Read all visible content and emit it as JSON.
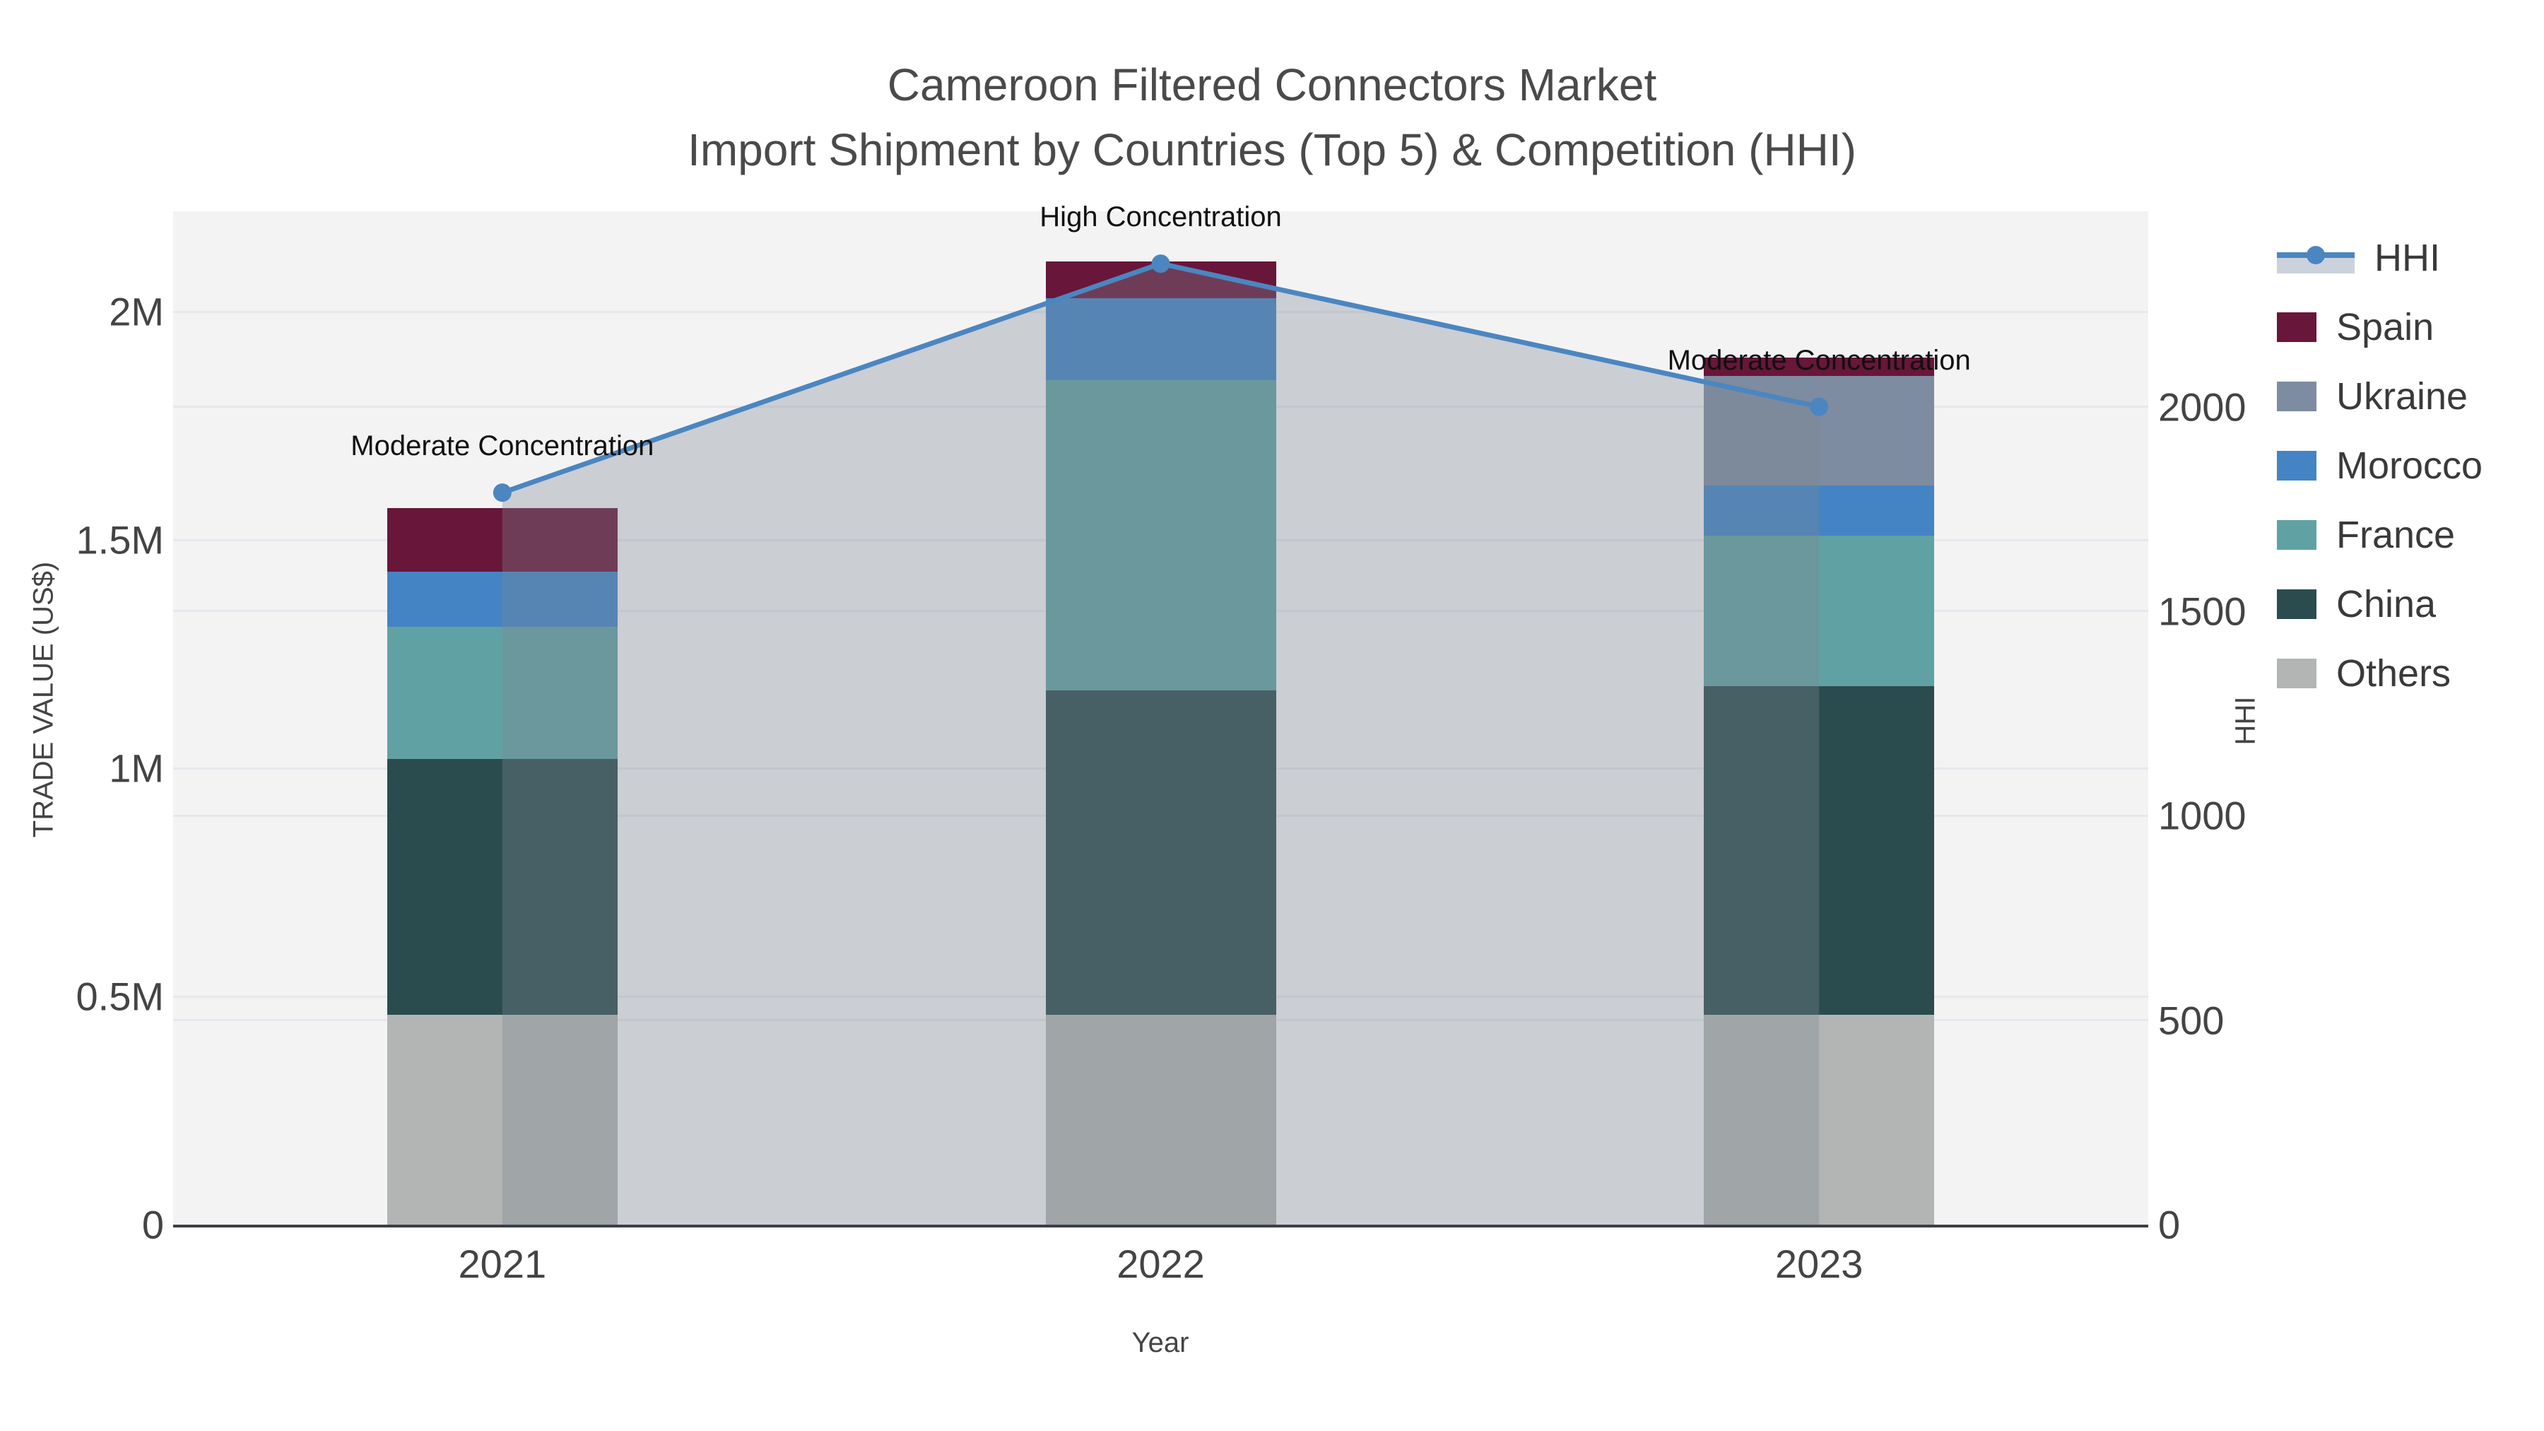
{
  "title": {
    "line1": "Cameroon Filtered Connectors Market",
    "line2": "Import Shipment by Countries (Top 5) & Competition (HHI)"
  },
  "chart_data": {
    "type": "bar+line",
    "title": "Cameroon Filtered Connectors Market",
    "subtitle": "Import Shipment by Countries (Top 5) & Competition (HHI)",
    "xlabel": "Year",
    "ylabel_left": "TRADE VALUE (US$)",
    "ylabel_right": "HHI",
    "categories": [
      "2021",
      "2022",
      "2023"
    ],
    "bar_mode": "stacked",
    "grid": true,
    "legend_position": "right",
    "series": [
      {
        "name": "Spain",
        "color": "#68163a",
        "values_musd": [
          0.14,
          0.08,
          0.04
        ]
      },
      {
        "name": "Ukraine",
        "color": "#7d8ca1",
        "values_musd": [
          0.0,
          0.0,
          0.24
        ]
      },
      {
        "name": "Morocco",
        "color": "#4484c4",
        "values_musd": [
          0.12,
          0.18,
          0.11
        ]
      },
      {
        "name": "France",
        "color": "#60a2a3",
        "values_musd": [
          0.29,
          0.68,
          0.33
        ]
      },
      {
        "name": "China",
        "color": "#2b4c4e",
        "values_musd": [
          0.56,
          0.71,
          0.72
        ]
      },
      {
        "name": "Others",
        "color": "#b2b5b4",
        "values_musd": [
          0.46,
          0.46,
          0.46
        ]
      }
    ],
    "stack_order_bottom_to_top": [
      "Others",
      "China",
      "France",
      "Morocco",
      "Ukraine",
      "Spain"
    ],
    "bar_totals_musd": [
      1.57,
      2.11,
      1.9
    ],
    "hhi_line": {
      "name": "HHI",
      "values": [
        1790,
        2350,
        2000
      ],
      "line_color": "#4b86c0",
      "marker_color": "#4b86c0",
      "area_fill_color": "rgba(125,136,148,0.34)"
    },
    "annotations": [
      {
        "category": "2021",
        "text": "Moderate Concentration"
      },
      {
        "category": "2022",
        "text": "High Concentration"
      },
      {
        "category": "2023",
        "text": "Moderate Concentration"
      }
    ],
    "y_left_axis": {
      "min": 0,
      "max_visible": 2.22,
      "ticks": [
        {
          "v": 0,
          "label": "0"
        },
        {
          "v": 0.5,
          "label": "0.5M"
        },
        {
          "v": 1,
          "label": "1M"
        },
        {
          "v": 1.5,
          "label": "1.5M"
        },
        {
          "v": 2,
          "label": "2M"
        }
      ]
    },
    "y_right_axis": {
      "min": 0,
      "max_visible": 2478,
      "ticks": [
        {
          "v": 0,
          "label": "0"
        },
        {
          "v": 500,
          "label": "500"
        },
        {
          "v": 1000,
          "label": "1000"
        },
        {
          "v": 1500,
          "label": "1500"
        },
        {
          "v": 2000,
          "label": "2000"
        }
      ]
    },
    "legend": [
      "HHI",
      "Spain",
      "Ukraine",
      "Morocco",
      "France",
      "China",
      "Others"
    ]
  }
}
